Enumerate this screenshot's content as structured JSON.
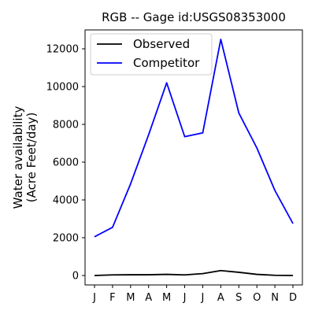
{
  "chart_data": {
    "type": "line",
    "title": "RGB -- Gage id:USGS08353000",
    "xlabel": "",
    "ylabel": [
      "Water availability",
      "(Acre Feet/day)"
    ],
    "categories": [
      "J",
      "F",
      "M",
      "A",
      "M",
      "J",
      "J",
      "A",
      "S",
      "O",
      "N",
      "D"
    ],
    "ylim": [
      -500,
      13000
    ],
    "yticks": [
      0,
      2000,
      4000,
      6000,
      8000,
      10000,
      12000
    ],
    "grid": false,
    "legend_position": "top-left",
    "series": [
      {
        "name": "Observed",
        "color": "#000000",
        "values": [
          0,
          30,
          40,
          40,
          60,
          30,
          100,
          260,
          170,
          60,
          10,
          0
        ]
      },
      {
        "name": "Competitor",
        "color": "#0000ff",
        "values": [
          2050,
          2550,
          4850,
          7450,
          10200,
          7350,
          7550,
          12500,
          8600,
          6750,
          4500,
          2750
        ]
      }
    ]
  }
}
